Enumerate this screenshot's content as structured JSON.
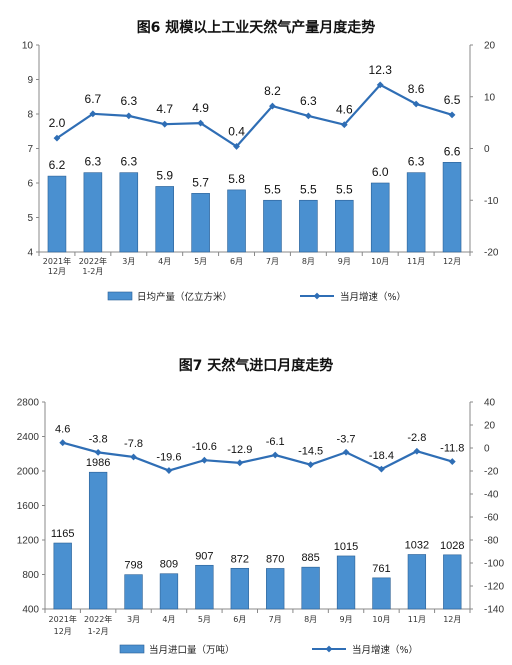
{
  "colors": {
    "bar": "#4a90d0",
    "bar_stroke": "#2a5f94",
    "line": "#2f6eb5",
    "axis": "#888888"
  },
  "chart_data": [
    {
      "type": "bar",
      "title": "图6  规模以上工业天然气产量月度走势",
      "categories": [
        [
          "2021年",
          "12月"
        ],
        [
          "2022年",
          "1-2月"
        ],
        [
          "3月"
        ],
        [
          "4月"
        ],
        [
          "5月"
        ],
        [
          "6月"
        ],
        [
          "7月"
        ],
        [
          "8月"
        ],
        [
          "9月"
        ],
        [
          "10月"
        ],
        [
          "11月"
        ],
        [
          "12月"
        ]
      ],
      "series": [
        {
          "name": "日均产量（亿立方米）",
          "type": "bar",
          "axis": "left",
          "values": [
            6.2,
            6.3,
            6.3,
            5.9,
            5.7,
            5.8,
            5.5,
            5.5,
            5.5,
            6.0,
            6.3,
            6.6
          ],
          "labels": [
            "6.2",
            "6.3",
            "6.3",
            "5.9",
            "5.7",
            "5.8",
            "5.5",
            "5.5",
            "5.5",
            "6.0",
            "6.3",
            "6.6"
          ]
        },
        {
          "name": "当月增速（%）",
          "type": "line",
          "axis": "right",
          "values": [
            2.0,
            6.7,
            6.3,
            4.7,
            4.9,
            0.4,
            8.2,
            6.3,
            4.6,
            12.3,
            8.6,
            6.5
          ],
          "labels": [
            "2.0",
            "6.7",
            "6.3",
            "4.7",
            "4.9",
            "0.4",
            "8.2",
            "6.3",
            "4.6",
            "12.3",
            "8.6",
            "6.5"
          ]
        }
      ],
      "ylim_left": [
        4,
        10
      ],
      "ylim_right": [
        -20,
        20
      ],
      "yticks_left": [
        "4",
        "5",
        "6",
        "7",
        "8",
        "9",
        "10"
      ],
      "yticks_right": [
        "-20",
        "-10",
        "0",
        "10",
        "20"
      ],
      "legend_position": "bottom"
    },
    {
      "type": "bar",
      "title": "图7  天然气进口月度走势",
      "categories": [
        [
          "2021年",
          "12月"
        ],
        [
          "2022年",
          "1-2月"
        ],
        [
          "3月"
        ],
        [
          "4月"
        ],
        [
          "5月"
        ],
        [
          "6月"
        ],
        [
          "7月"
        ],
        [
          "8月"
        ],
        [
          "9月"
        ],
        [
          "10月"
        ],
        [
          "11月"
        ],
        [
          "12月"
        ]
      ],
      "series": [
        {
          "name": "当月进口量（万吨）",
          "type": "bar",
          "axis": "left",
          "values": [
            1165,
            1986,
            798,
            809,
            907,
            872,
            870,
            885,
            1015,
            761,
            1032,
            1028
          ],
          "labels": [
            "1165",
            "1986",
            "798",
            "809",
            "907",
            "872",
            "870",
            "885",
            "1015",
            "761",
            "1032",
            "1028"
          ]
        },
        {
          "name": "当月增速（%）",
          "type": "line",
          "axis": "right",
          "values": [
            4.6,
            -3.8,
            -7.8,
            -19.6,
            -10.6,
            -12.9,
            -6.1,
            -14.5,
            -3.7,
            -18.4,
            -2.8,
            -11.8
          ],
          "labels": [
            "4.6",
            "-3.8",
            "-7.8",
            "-19.6",
            "-10.6",
            "-12.9",
            "-6.1",
            "-14.5",
            "-3.7",
            "-18.4",
            "-2.8",
            "-11.8"
          ]
        }
      ],
      "ylim_left": [
        400,
        2800
      ],
      "ylim_right": [
        -140,
        40
      ],
      "yticks_left": [
        "400",
        "800",
        "1200",
        "1600",
        "2000",
        "2400",
        "2800"
      ],
      "yticks_right": [
        "-140",
        "-120",
        "-100",
        "-80",
        "-60",
        "-40",
        "-20",
        "0",
        "20",
        "40"
      ],
      "legend_position": "bottom"
    }
  ]
}
